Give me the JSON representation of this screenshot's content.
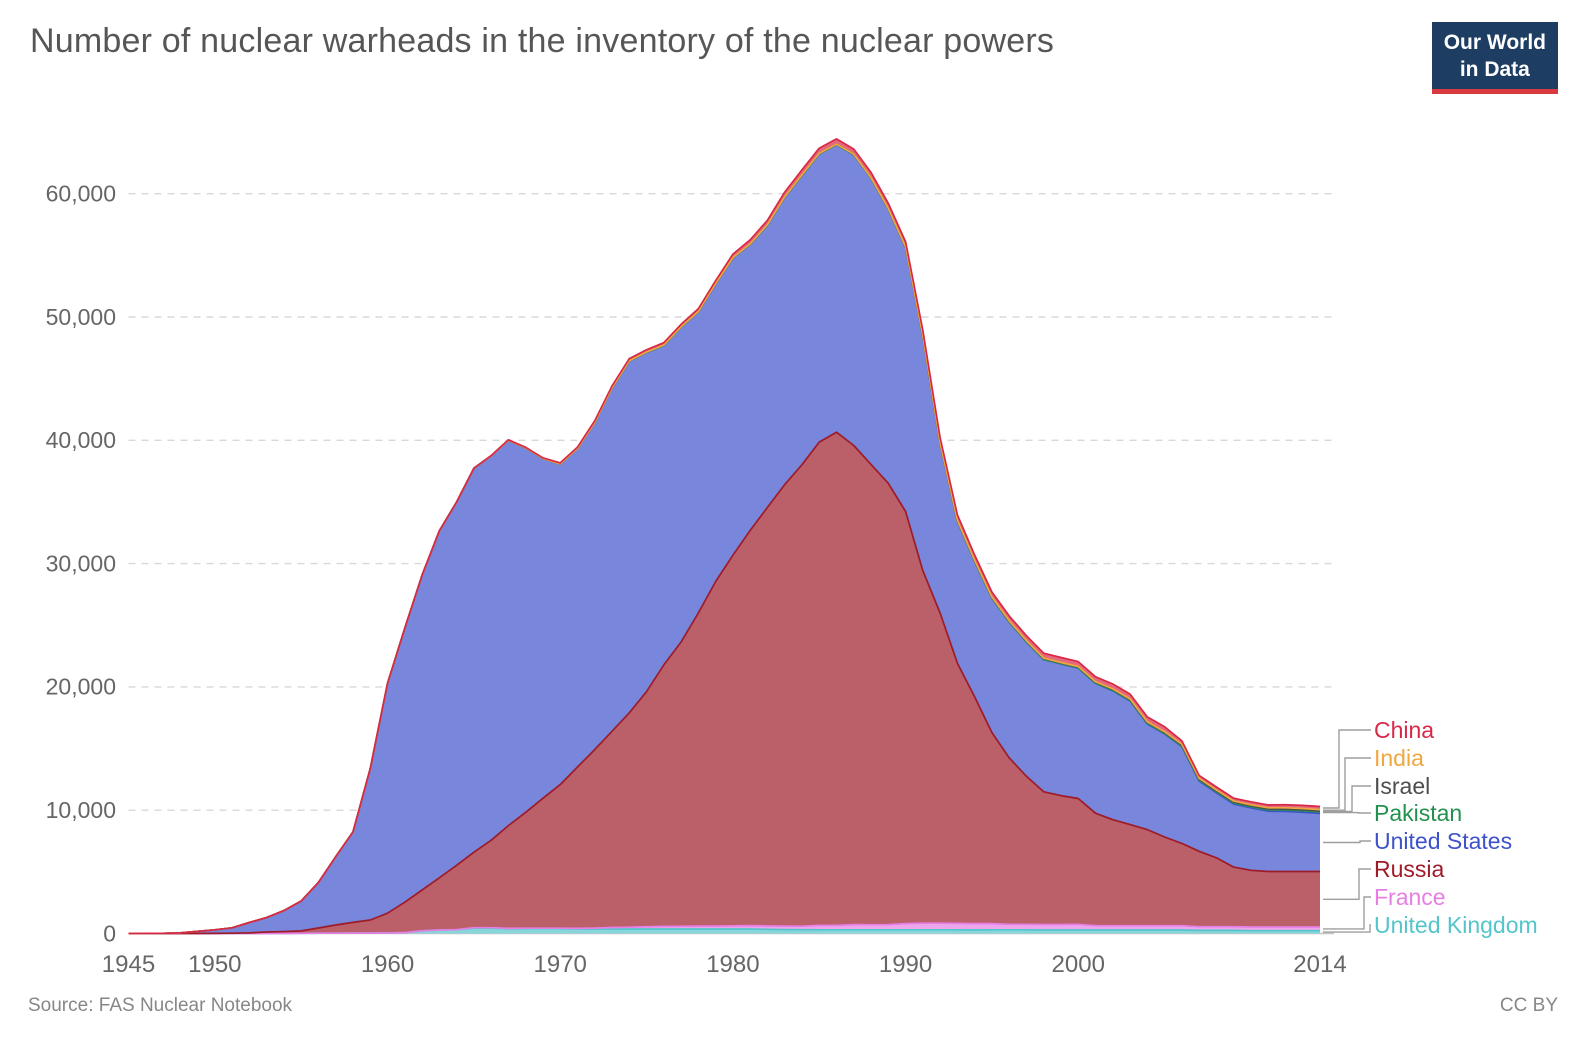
{
  "title": "Number of nuclear warheads in the inventory of the nuclear powers",
  "logo": {
    "line1": "Our World",
    "line2": "in Data"
  },
  "footer": {
    "source": "Source: FAS Nuclear Notebook",
    "license": "CC BY"
  },
  "colors": {
    "background": "#ffffff",
    "title_text": "#565656",
    "axis_text": "#666666",
    "gridline": "#d8d8d8",
    "zero_line": "#c4c4c4",
    "connector": "#9e9e9e",
    "footer_text": "#878787",
    "logo_bg": "#1d3d63",
    "logo_bar": "#d93a3f"
  },
  "chart_data": {
    "type": "area",
    "stacked": true,
    "title": "Number of nuclear warheads in the inventory of the nuclear powers",
    "xlabel": "",
    "ylabel": "",
    "grid": "horizontal-dashed",
    "legend_position": "right",
    "xlim": [
      1945,
      2014
    ],
    "ylim": [
      0,
      65000
    ],
    "xticks": [
      1945,
      1950,
      1960,
      1970,
      1980,
      1990,
      2000,
      2014
    ],
    "yticks": [
      0,
      10000,
      20000,
      30000,
      40000,
      50000,
      60000
    ],
    "x": [
      1945,
      1946,
      1947,
      1948,
      1949,
      1950,
      1951,
      1952,
      1953,
      1954,
      1955,
      1956,
      1957,
      1958,
      1959,
      1960,
      1961,
      1962,
      1963,
      1964,
      1965,
      1966,
      1967,
      1968,
      1969,
      1970,
      1971,
      1972,
      1973,
      1974,
      1975,
      1976,
      1977,
      1978,
      1979,
      1980,
      1981,
      1982,
      1983,
      1984,
      1985,
      1986,
      1987,
      1988,
      1989,
      1990,
      1991,
      1992,
      1993,
      1994,
      1995,
      1996,
      1997,
      1998,
      1999,
      2000,
      2001,
      2002,
      2003,
      2004,
      2005,
      2006,
      2007,
      2008,
      2009,
      2010,
      2011,
      2012,
      2013,
      2014
    ],
    "series": [
      {
        "name": "United Kingdom",
        "color": "#53c5cb",
        "values": [
          0,
          0,
          0,
          0,
          0,
          0,
          0,
          0,
          1,
          7,
          14,
          21,
          28,
          31,
          35,
          42,
          70,
          207,
          280,
          310,
          436,
          436,
          380,
          394,
          394,
          394,
          365,
          365,
          367,
          367,
          367,
          367,
          367,
          367,
          367,
          367,
          367,
          335,
          320,
          310,
          300,
          300,
          300,
          300,
          300,
          300,
          300,
          300,
          300,
          290,
          300,
          300,
          300,
          280,
          280,
          280,
          280,
          280,
          280,
          280,
          280,
          280,
          250,
          250,
          250,
          225,
          225,
          225,
          225,
          225
        ]
      },
      {
        "name": "France",
        "color": "#e57fe4",
        "values": [
          0,
          0,
          0,
          0,
          0,
          0,
          0,
          0,
          0,
          0,
          0,
          0,
          0,
          0,
          0,
          0,
          0,
          0,
          0,
          4,
          32,
          36,
          36,
          36,
          36,
          36,
          45,
          70,
          116,
          145,
          188,
          212,
          228,
          235,
          235,
          250,
          274,
          274,
          280,
          280,
          360,
          355,
          420,
          410,
          410,
          505,
          538,
          538,
          524,
          512,
          500,
          450,
          450,
          450,
          450,
          470,
          350,
          350,
          350,
          350,
          350,
          350,
          300,
          300,
          300,
          300,
          300,
          300,
          300,
          300
        ]
      },
      {
        "name": "Russia",
        "color": "#9e1b28",
        "values": [
          0,
          0,
          0,
          0,
          1,
          5,
          25,
          50,
          120,
          150,
          200,
          426,
          660,
          869,
          1060,
          1605,
          2471,
          3322,
          4238,
          5221,
          6129,
          7089,
          8339,
          9399,
          10538,
          11643,
          13092,
          14478,
          15915,
          17385,
          19055,
          21205,
          23044,
          25393,
          27935,
          30062,
          32049,
          33952,
          35804,
          37431,
          39197,
          40000,
          38859,
          37333,
          35805,
          33417,
          28595,
          25155,
          21101,
          18399,
          15500,
          13500,
          12000,
          10764,
          10451,
          10201,
          9126,
          8600,
          8200,
          7800,
          7200,
          6675,
          6115,
          5591,
          4834,
          4600,
          4500,
          4500,
          4500,
          4500
        ]
      },
      {
        "name": "United States",
        "color": "#3e52cc",
        "values": [
          2,
          9,
          13,
          50,
          170,
          299,
          438,
          841,
          1169,
          1703,
          2422,
          3692,
          5543,
          7345,
          12298,
          18638,
          22229,
          25540,
          28133,
          29463,
          31139,
          31175,
          31255,
          29561,
          27552,
          26008,
          25830,
          26516,
          27835,
          28537,
          27519,
          25914,
          25542,
          24418,
          24138,
          24104,
          23208,
          22886,
          23305,
          23459,
          23368,
          23317,
          23575,
          23205,
          22217,
          21392,
          19008,
          13708,
          11511,
          10979,
          10904,
          11011,
          10903,
          10732,
          10685,
          10577,
          10526,
          10457,
          10027,
          8570,
          8360,
          7853,
          5709,
          5273,
          5113,
          5066,
          4897,
          4881,
          4804,
          4717
        ]
      },
      {
        "name": "Pakistan",
        "color": "#23914e",
        "values": [
          0,
          0,
          0,
          0,
          0,
          0,
          0,
          0,
          0,
          0,
          0,
          0,
          0,
          0,
          0,
          0,
          0,
          0,
          0,
          0,
          0,
          0,
          0,
          0,
          0,
          0,
          0,
          0,
          0,
          0,
          0,
          0,
          0,
          0,
          0,
          0,
          0,
          0,
          0,
          0,
          0,
          0,
          1,
          2,
          4,
          4,
          6,
          8,
          10,
          10,
          10,
          12,
          14,
          16,
          20,
          26,
          30,
          36,
          42,
          46,
          50,
          60,
          70,
          80,
          90,
          90,
          100,
          110,
          120,
          120
        ]
      },
      {
        "name": "Israel",
        "color": "#4d4d4d",
        "values": [
          0,
          0,
          0,
          0,
          0,
          0,
          0,
          0,
          0,
          0,
          0,
          0,
          0,
          0,
          0,
          0,
          0,
          0,
          0,
          0,
          0,
          0,
          2,
          5,
          8,
          8,
          13,
          18,
          20,
          21,
          22,
          24,
          25,
          28,
          31,
          31,
          33,
          35,
          38,
          41,
          44,
          44,
          47,
          50,
          53,
          56,
          58,
          60,
          61,
          62,
          63,
          64,
          66,
          68,
          70,
          72,
          74,
          76,
          78,
          80,
          80,
          80,
          80,
          80,
          80,
          80,
          80,
          80,
          80,
          80
        ]
      },
      {
        "name": "India",
        "color": "#f0a73e",
        "values": [
          0,
          0,
          0,
          0,
          0,
          0,
          0,
          0,
          0,
          0,
          0,
          0,
          0,
          0,
          0,
          0,
          0,
          0,
          0,
          0,
          0,
          0,
          0,
          0,
          0,
          0,
          0,
          0,
          0,
          0,
          0,
          0,
          0,
          0,
          0,
          0,
          0,
          0,
          0,
          0,
          0,
          0,
          0,
          1,
          3,
          7,
          9,
          11,
          13,
          15,
          18,
          20,
          22,
          24,
          26,
          28,
          32,
          36,
          40,
          44,
          48,
          52,
          60,
          70,
          70,
          80,
          90,
          100,
          110,
          110
        ]
      },
      {
        "name": "China",
        "color": "#d92847",
        "values": [
          0,
          0,
          0,
          0,
          0,
          0,
          0,
          0,
          0,
          0,
          0,
          0,
          0,
          0,
          0,
          0,
          0,
          0,
          0,
          1,
          5,
          20,
          25,
          35,
          50,
          75,
          100,
          130,
          150,
          170,
          185,
          190,
          200,
          220,
          235,
          280,
          330,
          360,
          380,
          415,
          425,
          425,
          415,
          430,
          430,
          430,
          435,
          435,
          435,
          435,
          400,
          400,
          400,
          400,
          400,
          400,
          400,
          400,
          400,
          400,
          400,
          270,
          240,
          240,
          240,
          240,
          240,
          250,
          250,
          250
        ]
      }
    ]
  }
}
